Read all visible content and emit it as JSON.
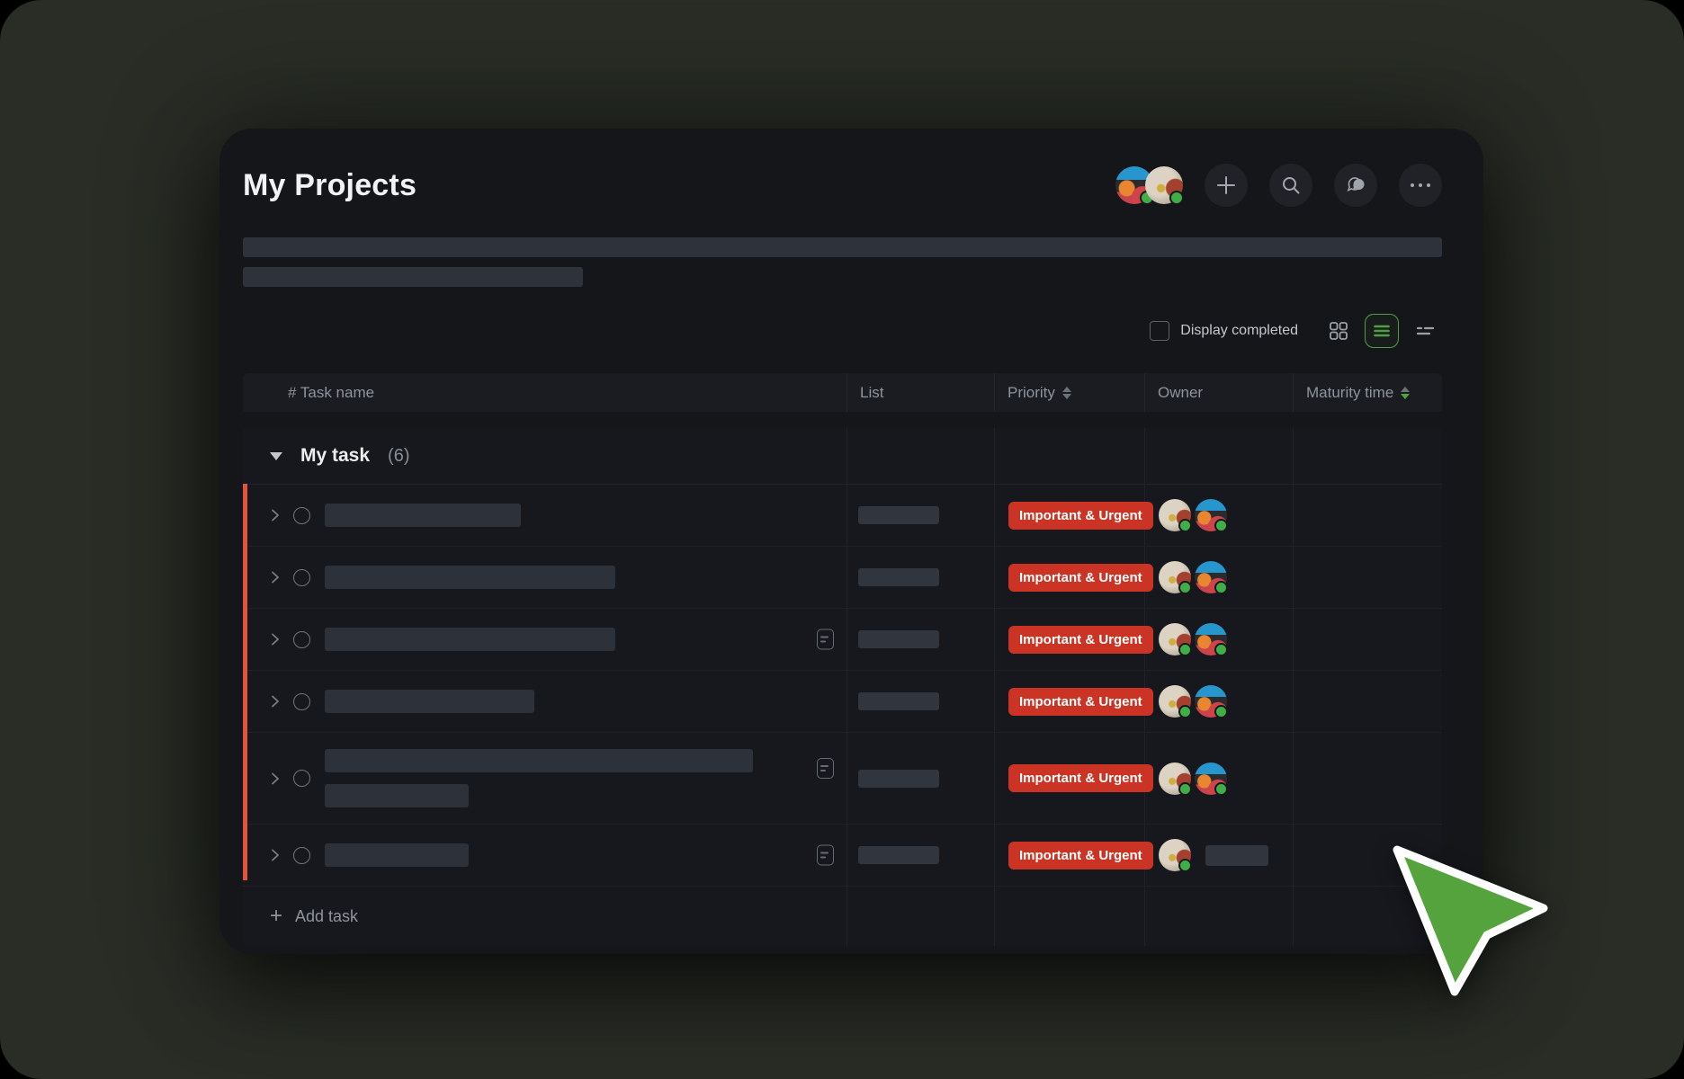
{
  "page": {
    "title": "My Projects"
  },
  "header": {
    "avatars": [
      {
        "name": "member-avatar-1",
        "style": "anime"
      },
      {
        "name": "member-avatar-2",
        "style": "baby"
      }
    ],
    "actions": [
      {
        "name": "add-button",
        "icon": "plus-icon"
      },
      {
        "name": "search-button",
        "icon": "search-icon"
      },
      {
        "name": "chat-button",
        "icon": "chat-bubble-icon"
      },
      {
        "name": "more-button",
        "icon": "ellipsis-icon"
      }
    ]
  },
  "controls": {
    "display_completed_label": "Display completed",
    "checkbox_checked": false,
    "view_modes": [
      {
        "name": "grid-view",
        "icon": "grid-icon",
        "active": false
      },
      {
        "name": "list-view",
        "icon": "list-icon",
        "active": true
      },
      {
        "name": "filter-view",
        "icon": "filter-lines-icon",
        "active": false
      }
    ]
  },
  "table": {
    "columns": [
      {
        "label": "# Task name",
        "sortable": false
      },
      {
        "label": "List",
        "sortable": false
      },
      {
        "label": "Priority",
        "sortable": true,
        "sort": "none"
      },
      {
        "label": "Owner",
        "sortable": false
      },
      {
        "label": "Maturity time",
        "sortable": true,
        "sort": "desc-green"
      }
    ],
    "group": {
      "label": "My task",
      "count": "(6)"
    },
    "priority_label": "Important & Urgent",
    "rows": [
      {
        "name_width": 218,
        "name_width2": null,
        "note_icon": false,
        "list_skeleton": true,
        "priority": "Important & Urgent",
        "owners": [
          "baby",
          "anime"
        ],
        "owner_name_skeleton": false
      },
      {
        "name_width": 323,
        "name_width2": null,
        "note_icon": false,
        "list_skeleton": true,
        "priority": "Important & Urgent",
        "owners": [
          "baby",
          "anime"
        ],
        "owner_name_skeleton": false
      },
      {
        "name_width": 323,
        "name_width2": null,
        "note_icon": true,
        "list_skeleton": true,
        "priority": "Important & Urgent",
        "owners": [
          "baby",
          "anime"
        ],
        "owner_name_skeleton": false
      },
      {
        "name_width": 233,
        "name_width2": null,
        "note_icon": false,
        "list_skeleton": true,
        "priority": "Important & Urgent",
        "owners": [
          "baby",
          "anime"
        ],
        "owner_name_skeleton": false
      },
      {
        "name_width": 476,
        "name_width2": 160,
        "note_icon": true,
        "list_skeleton": true,
        "priority": "Important & Urgent",
        "owners": [
          "baby",
          "anime"
        ],
        "owner_name_skeleton": false
      },
      {
        "name_width": 160,
        "name_width2": null,
        "note_icon": true,
        "list_skeleton": true,
        "priority": "Important & Urgent",
        "owners": [
          "baby"
        ],
        "owner_name_skeleton": true
      }
    ],
    "add_task_label": "Add task"
  },
  "colors": {
    "accent_green": "#4f9e44",
    "cursor_green": "#55a33c",
    "priority_red": "#cb3424",
    "row_marker_orange": "#e2523f",
    "online_dot_green": "#3fae46"
  }
}
